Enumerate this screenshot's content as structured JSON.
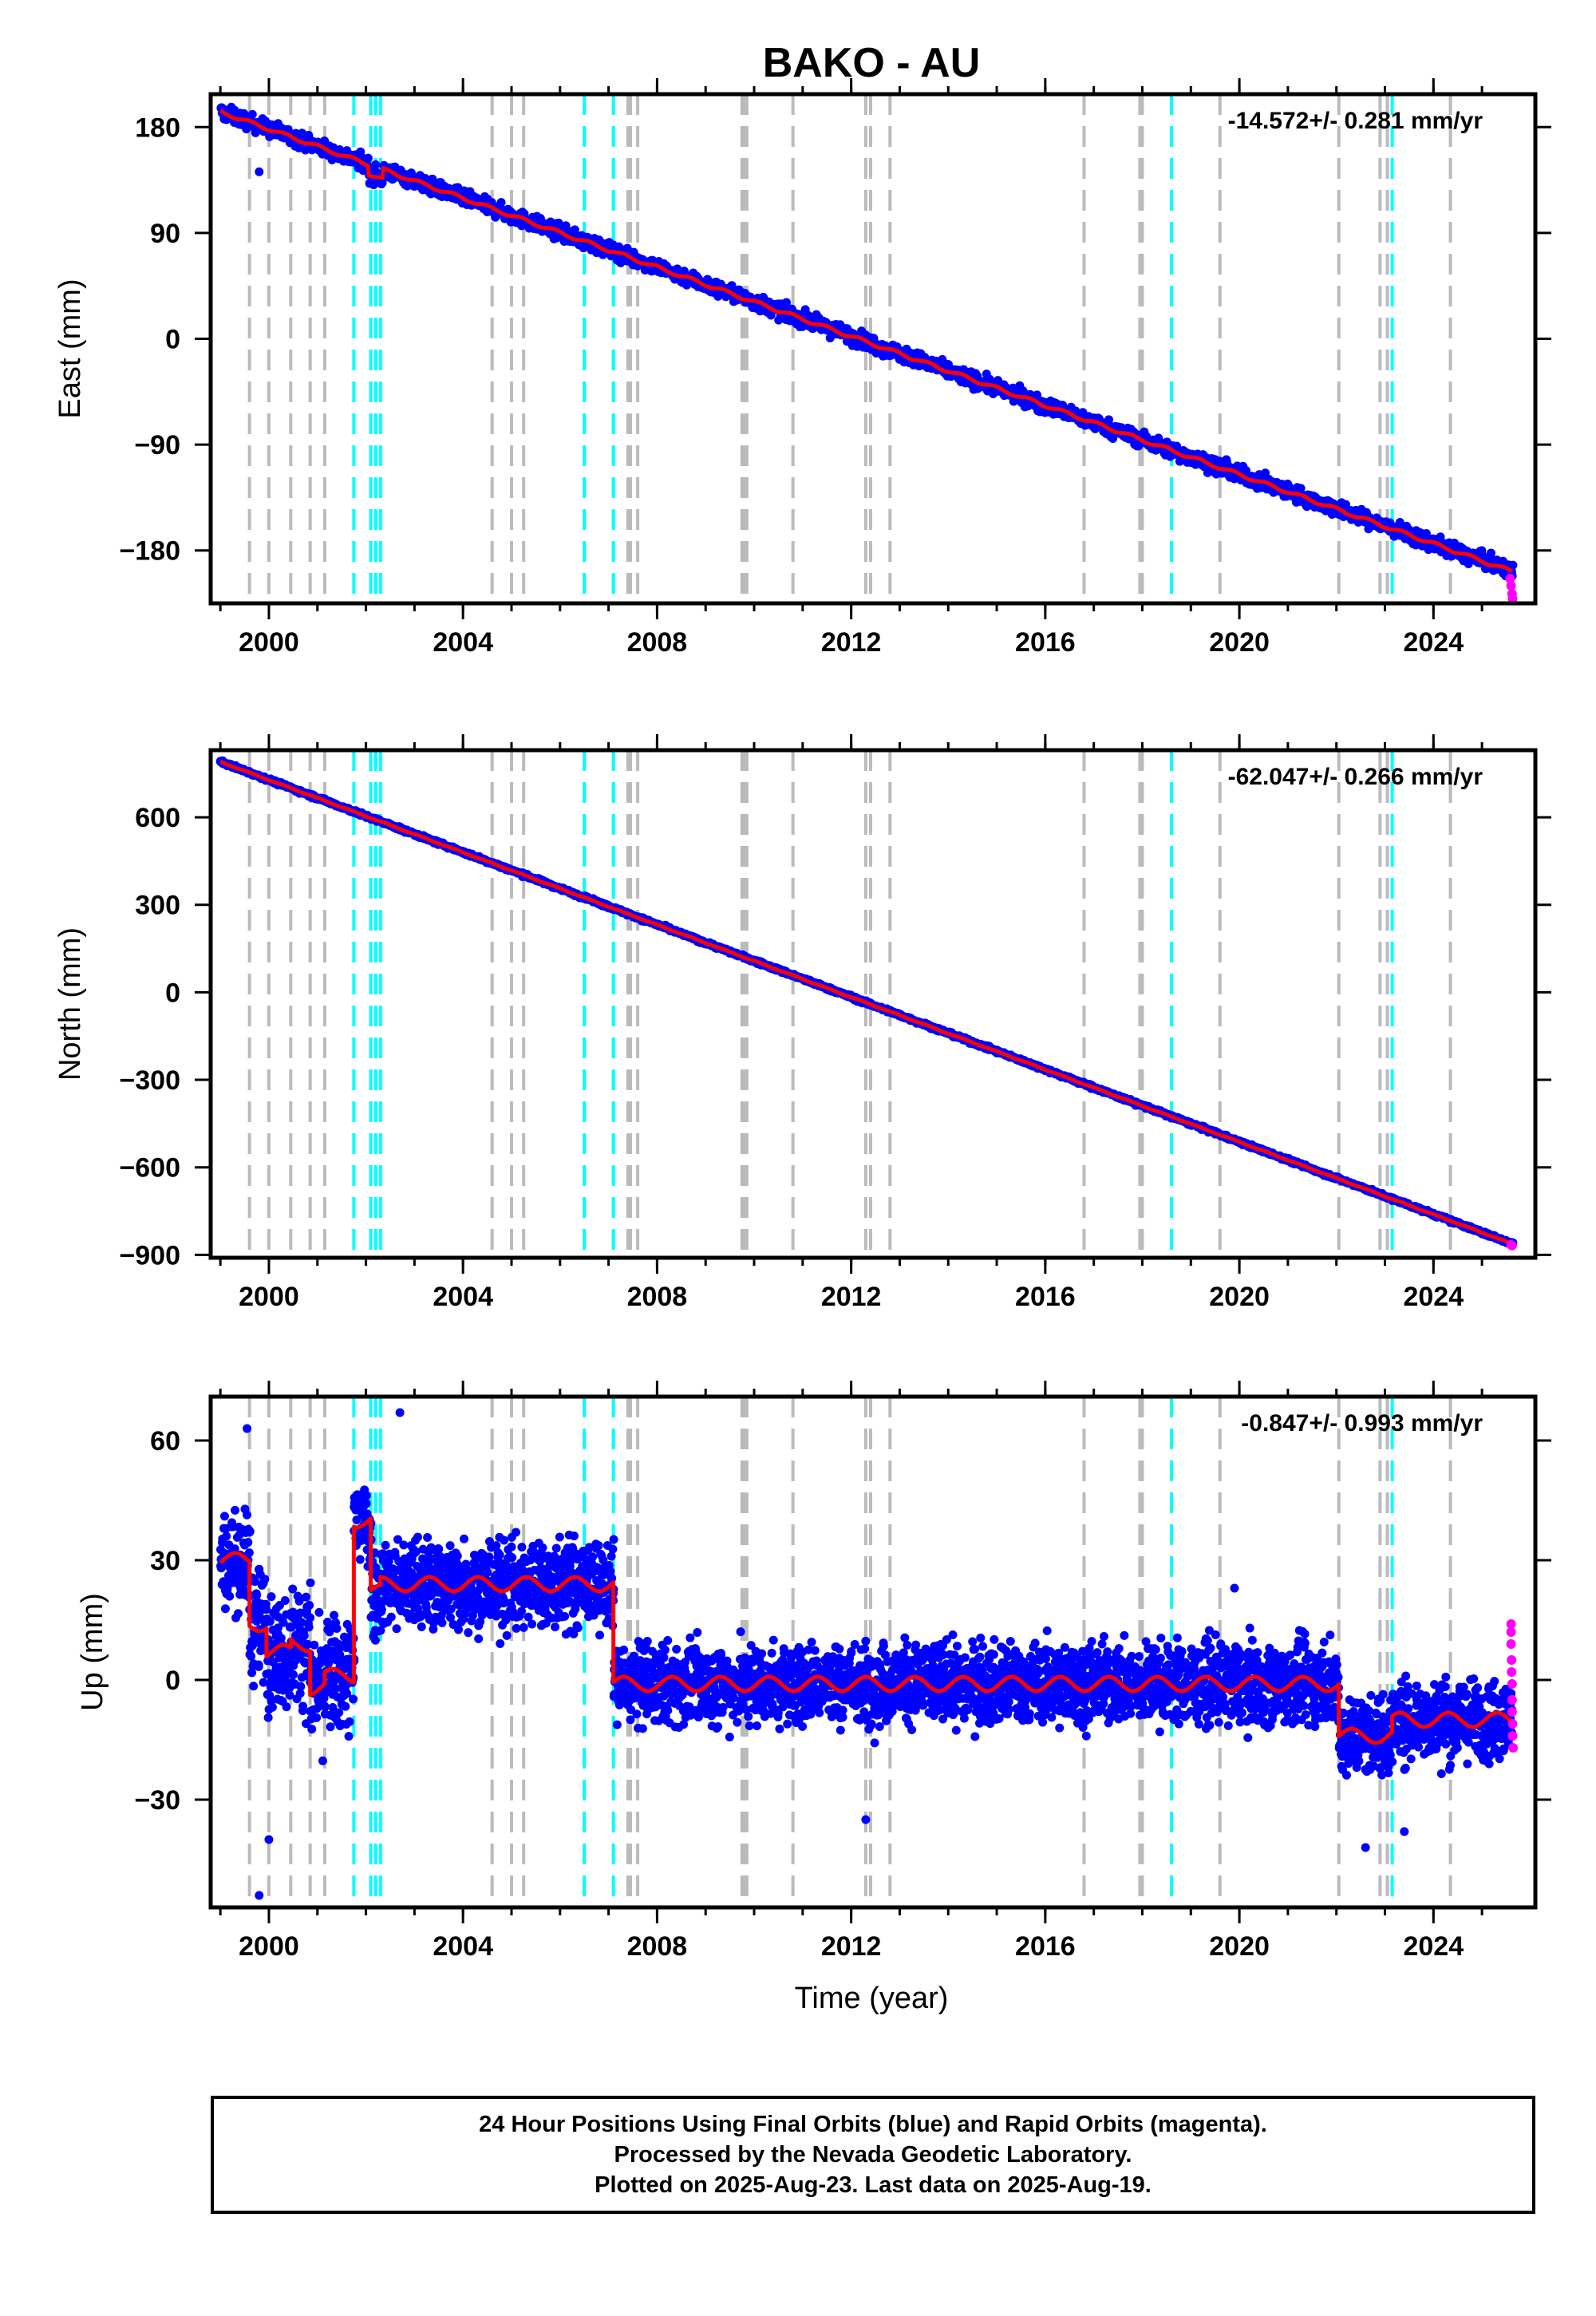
{
  "chart_data": {
    "type": "scatter",
    "title": "BAKO - AU",
    "xlabel": "Time (year)",
    "xlim": [
      1998.8,
      2026.1
    ],
    "x_ticks": [
      "2000",
      "2004",
      "2008",
      "2012",
      "2016",
      "2020",
      "2024"
    ],
    "x_tick_values": [
      2000,
      2004,
      2008,
      2012,
      2016,
      2020,
      2024
    ],
    "legend": {
      "final_orbits": "blue",
      "rapid_orbits": "magenta",
      "model_fit": "red"
    },
    "gray_dashed_lines": [
      1999.6,
      2000.0,
      2000.45,
      2000.85,
      2001.15,
      2004.6,
      2005.0,
      2005.25,
      2007.4,
      2007.45,
      2007.6,
      2009.75,
      2009.8,
      2009.85,
      2010.8,
      2012.3,
      2012.4,
      2012.8,
      2016.8,
      2017.95,
      2018.0,
      2019.6,
      2022.05,
      2022.9,
      2023.05,
      2024.35
    ],
    "cyan_dashed_lines": [
      2001.75,
      2002.1,
      2002.2,
      2002.3,
      2006.5,
      2007.1,
      2018.6,
      2023.15
    ],
    "panels": [
      {
        "id": "east",
        "ylabel": "East (mm)",
        "ylim": [
          -225,
          208
        ],
        "y_ticks": [
          "180",
          "90",
          "0",
          "−90",
          "−180"
        ],
        "y_tick_values": [
          180,
          90,
          0,
          -90,
          -180
        ],
        "rate": "-14.572+/- 0.281 mm/yr",
        "line": {
          "start_year": 1999.0,
          "end_year": 2025.62,
          "start_value": 193,
          "end_value": -198
        },
        "scatter": 4.5,
        "extra_points": [
          [
            1999.8,
            142
          ],
          [
            2002.2,
            148
          ],
          [
            2004.1,
            125
          ]
        ],
        "steps": [
          [
            2002.05,
            2002.35,
            -8
          ]
        ],
        "rapid": [
          [
            2025.58,
            -204
          ],
          [
            2025.6,
            -210
          ],
          [
            2025.62,
            -217
          ],
          [
            2025.63,
            -221
          ]
        ]
      },
      {
        "id": "north",
        "ylabel": "North (mm)",
        "ylim": [
          -910,
          830
        ],
        "y_ticks": [
          "600",
          "300",
          "0",
          "−300",
          "−600",
          "−900"
        ],
        "y_tick_values": [
          600,
          300,
          0,
          -300,
          -600,
          -900
        ],
        "rate": "-62.047+/- 0.266 mm/yr",
        "line": {
          "start_year": 1999.0,
          "end_year": 2025.62,
          "start_value": 790,
          "end_value": -862
        },
        "scatter": 4,
        "extra_points": [],
        "steps": [],
        "rapid": [
          [
            2025.6,
            -866
          ],
          [
            2025.62,
            -868
          ]
        ]
      },
      {
        "id": "up",
        "ylabel": "Up (mm)",
        "ylim": [
          -57,
          71
        ],
        "y_ticks": [
          "60",
          "30",
          "0",
          "−30"
        ],
        "y_tick_values": [
          60,
          30,
          0,
          -30
        ],
        "rate": "-0.847+/- 0.993 mm/yr",
        "segments": [
          [
            1999.0,
            1999.6,
            30,
            8
          ],
          [
            1999.6,
            1999.95,
            14,
            10
          ],
          [
            1999.95,
            2000.45,
            7,
            10
          ],
          [
            2000.45,
            2000.85,
            9,
            10
          ],
          [
            2000.85,
            2001.15,
            -2,
            10
          ],
          [
            2001.15,
            2001.75,
            1,
            10
          ],
          [
            2001.75,
            2002.1,
            40,
            10
          ],
          [
            2002.1,
            2002.3,
            22,
            8
          ],
          [
            2002.3,
            2006.5,
            24,
            8
          ],
          [
            2006.5,
            2007.1,
            24,
            7
          ],
          [
            2007.1,
            2022.05,
            -1,
            7
          ],
          [
            2022.05,
            2023.15,
            -14,
            7
          ],
          [
            2023.15,
            2025.62,
            -10,
            7
          ]
        ],
        "extra_points": [
          [
            1999.55,
            63
          ],
          [
            1999.8,
            -54
          ],
          [
            2000.0,
            -40
          ],
          [
            2002.7,
            67
          ],
          [
            2012.3,
            -35
          ],
          [
            2019.9,
            23
          ],
          [
            2022.6,
            -42
          ],
          [
            2023.4,
            -38
          ]
        ],
        "rapid": [
          [
            2025.6,
            14
          ],
          [
            2025.6,
            12
          ],
          [
            2025.6,
            9
          ],
          [
            2025.61,
            5
          ],
          [
            2025.61,
            2
          ],
          [
            2025.62,
            -1
          ],
          [
            2025.62,
            -5
          ],
          [
            2025.62,
            -8
          ],
          [
            2025.63,
            -11
          ],
          [
            2025.63,
            -14
          ],
          [
            2025.64,
            -17
          ]
        ]
      }
    ]
  },
  "footer": {
    "line1": "24 Hour Positions Using Final Orbits (blue) and Rapid Orbits (magenta).",
    "line2": "Processed by the Nevada Geodetic Laboratory.",
    "line3": "Plotted on 2025-Aug-23. Last data on 2025-Aug-19."
  },
  "colors": {
    "final_orbits": "#0000ff",
    "rapid_orbits": "#ff00ff",
    "model_fit": "#ff0000",
    "gray_lines": "#bbbbbb",
    "cyan_lines": "#00ffff"
  }
}
